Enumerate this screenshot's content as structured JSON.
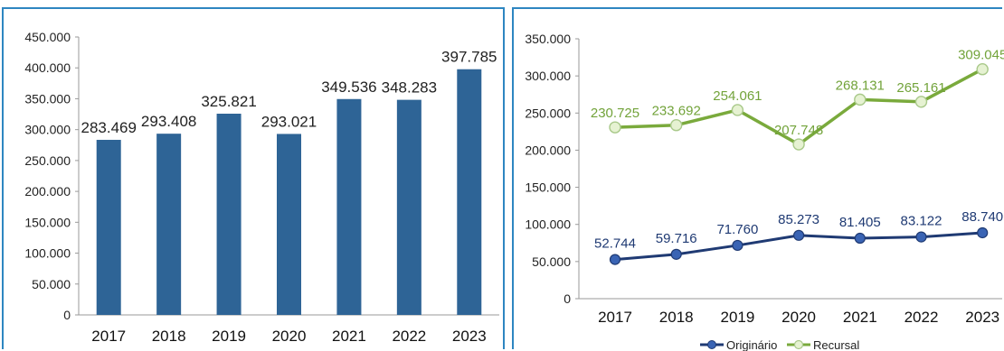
{
  "chart_data": [
    {
      "type": "bar",
      "categories": [
        "2017",
        "2018",
        "2019",
        "2020",
        "2021",
        "2022",
        "2023"
      ],
      "values": [
        283469,
        293408,
        325821,
        293021,
        349536,
        348283,
        397785
      ],
      "value_labels": [
        "283.469",
        "293.408",
        "325.821",
        "293.021",
        "349.536",
        "348.283",
        "397.785"
      ],
      "ylim": [
        0,
        450000
      ],
      "yticks": [
        0,
        50000,
        100000,
        150000,
        200000,
        250000,
        300000,
        350000,
        400000,
        450000
      ],
      "ytick_labels": [
        "0",
        "50.000",
        "100.000",
        "150.000",
        "200.000",
        "250.000",
        "300.000",
        "350.000",
        "400.000",
        "450.000"
      ],
      "grid": false,
      "color": "#2e6496"
    },
    {
      "type": "line",
      "categories": [
        "2017",
        "2018",
        "2019",
        "2020",
        "2021",
        "2022",
        "2023"
      ],
      "ylim": [
        0,
        350000
      ],
      "yticks": [
        0,
        50000,
        100000,
        150000,
        200000,
        250000,
        300000,
        350000
      ],
      "ytick_labels": [
        "0",
        "50.000",
        "100.000",
        "150.000",
        "200.000",
        "250.000",
        "300.000",
        "350.000"
      ],
      "grid": false,
      "legend": "bottom",
      "series": [
        {
          "name": "Originário",
          "values": [
            52744,
            59716,
            71760,
            85273,
            81405,
            83122,
            88740
          ],
          "value_labels": [
            "52.744",
            "59.716",
            "71.760",
            "85.273",
            "81.405",
            "83.122",
            "88.740"
          ],
          "color": "#1f3a73",
          "label_color": "#1f3a73"
        },
        {
          "name": "Recursal",
          "values": [
            230725,
            233692,
            254061,
            207748,
            268131,
            265161,
            309045
          ],
          "value_labels": [
            "230.725",
            "233.692",
            "254.061",
            "207.748",
            "268.131",
            "265.161",
            "309.045"
          ],
          "color": "#7aaa3c",
          "label_color": "#72a33a"
        }
      ]
    }
  ]
}
